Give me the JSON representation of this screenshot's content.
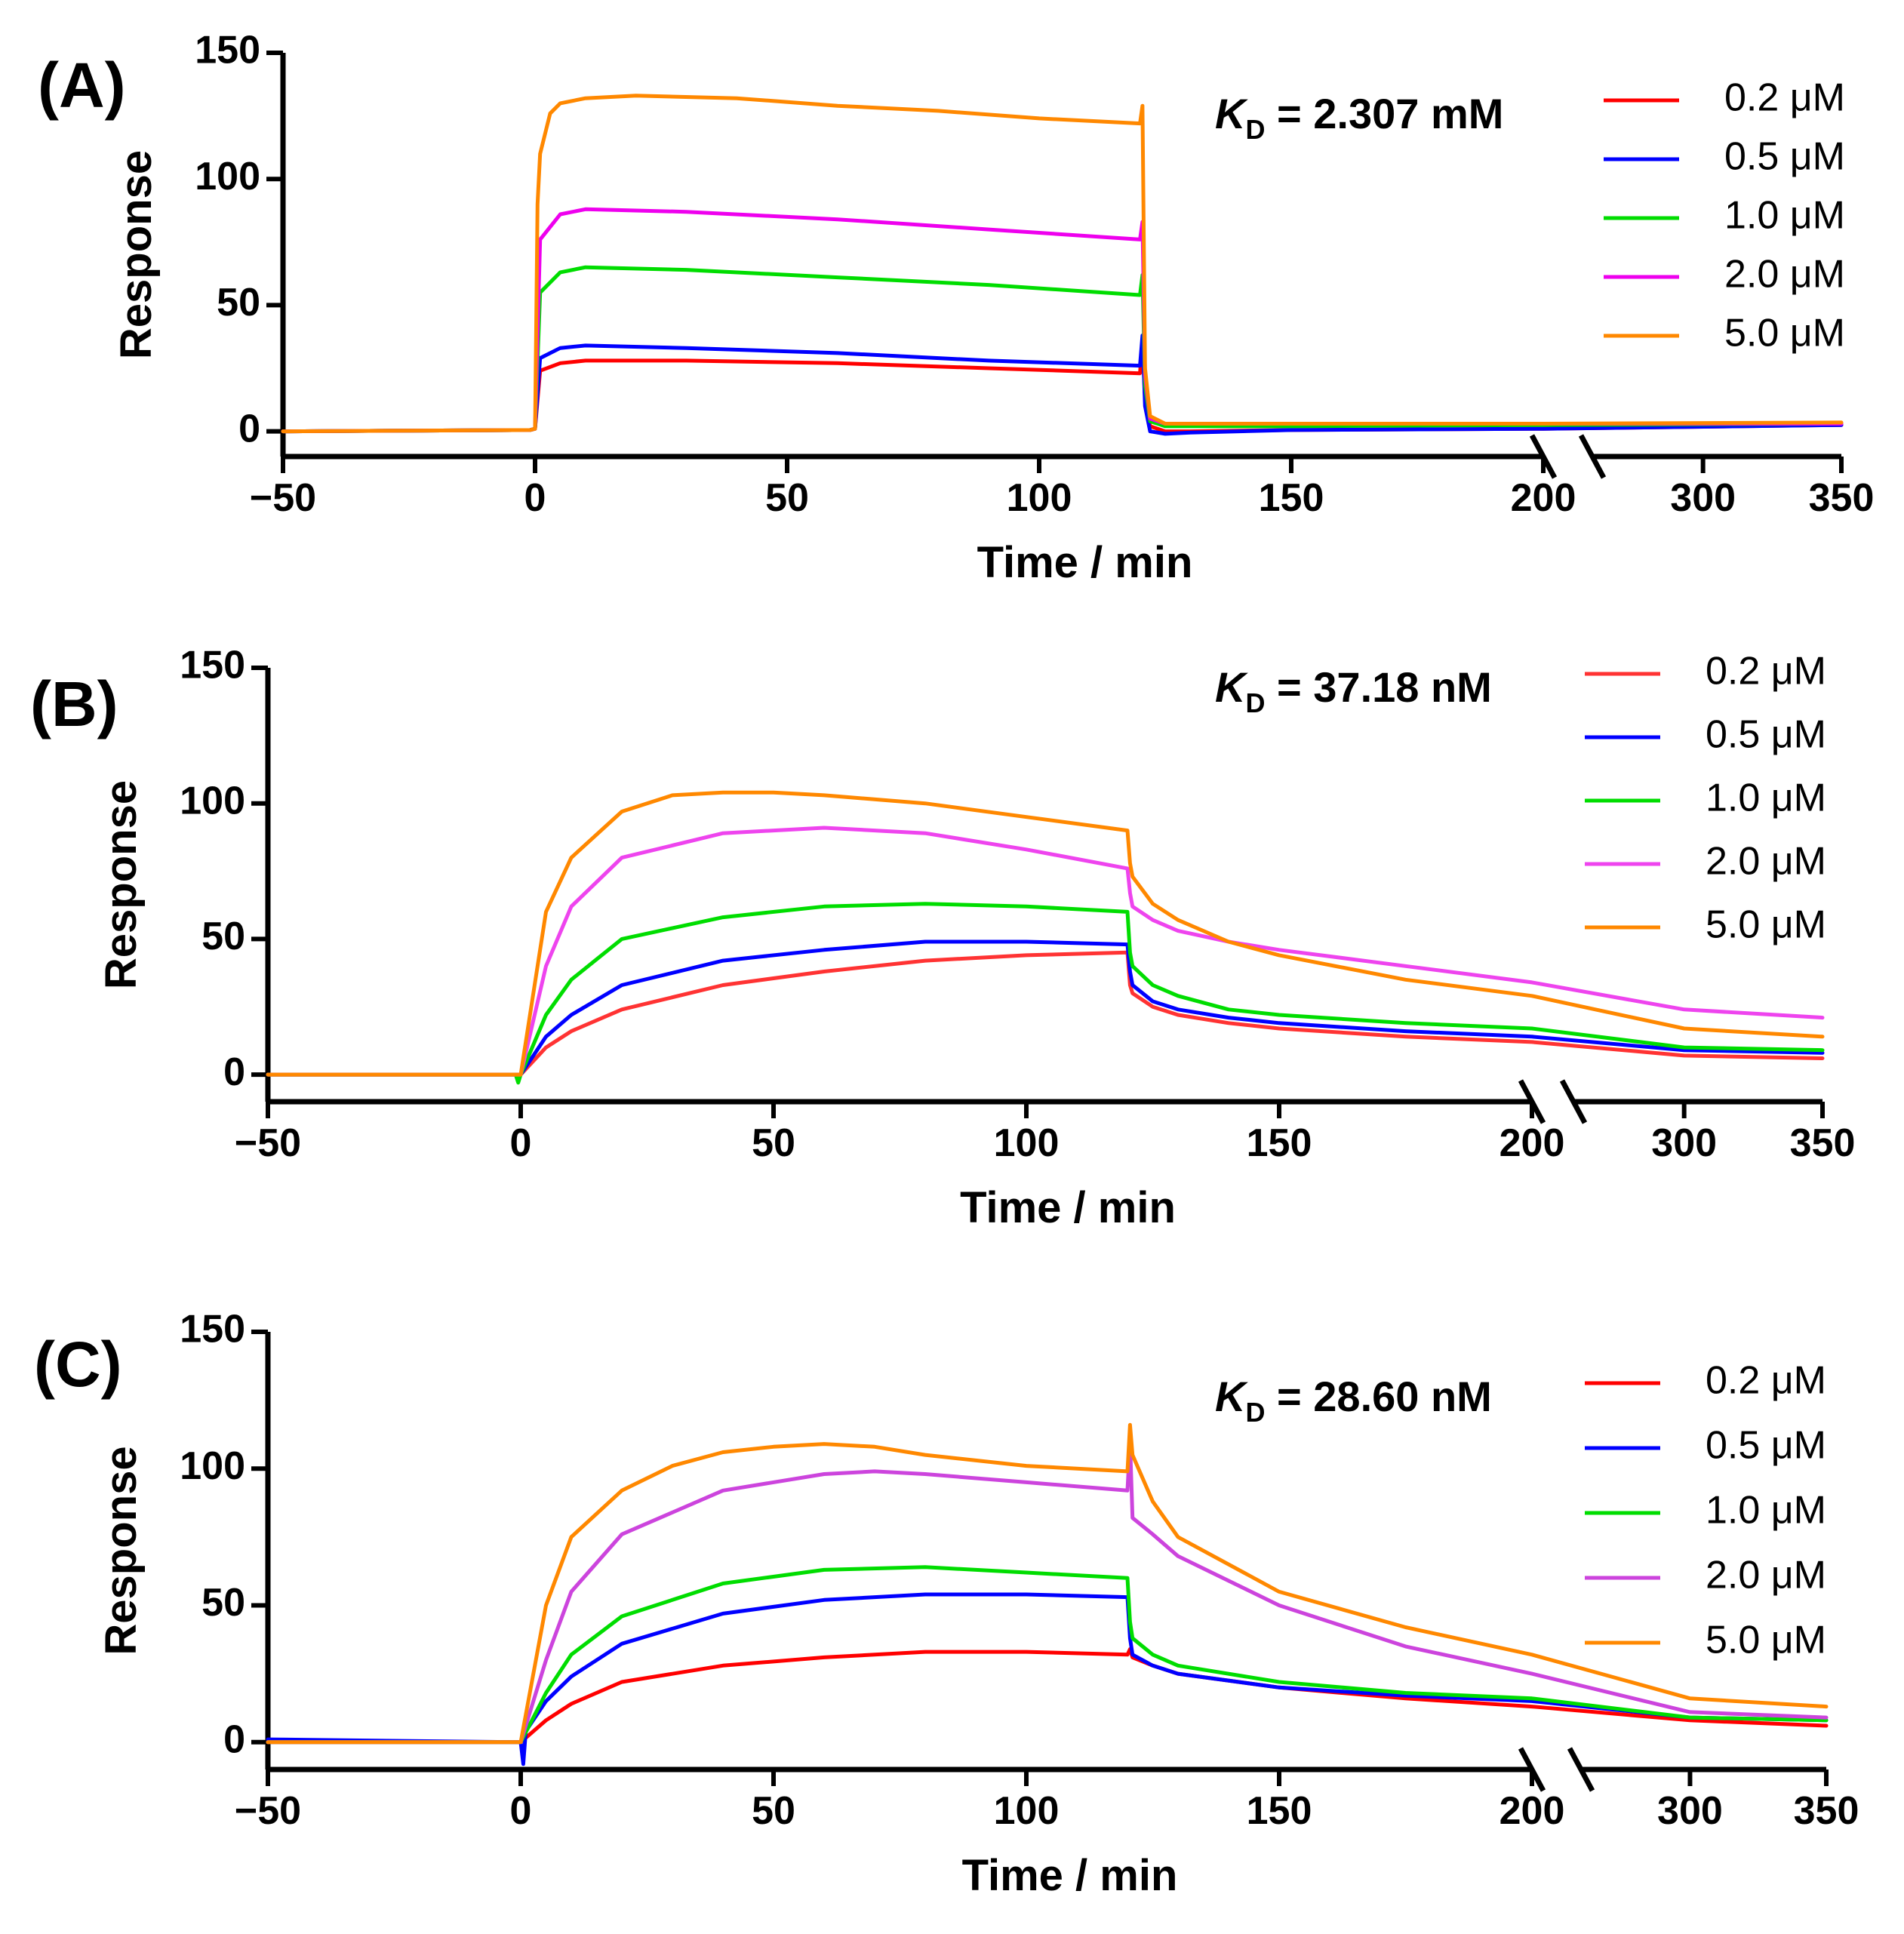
{
  "chart_data": [
    {
      "type": "line",
      "panel": "(A)",
      "title": "",
      "xlabel": "Time / min",
      "ylabel": "Response",
      "xlim": [
        -50,
        350
      ],
      "ylim": [
        -10,
        150
      ],
      "x_break": [
        200,
        260
      ],
      "x_ticks": [
        -50,
        0,
        50,
        100,
        150,
        200,
        300,
        350
      ],
      "x_tick_labels": [
        "−50",
        "0",
        "50",
        "100",
        "150",
        "200",
        "300",
        "350"
      ],
      "y_ticks": [
        0,
        50,
        100,
        150
      ],
      "y_tick_labels": [
        "0",
        "50",
        "100",
        "150"
      ],
      "kd": {
        "symbol": "K",
        "sub": "D",
        "value": " = 2.307 mM"
      },
      "series": [
        {
          "name": "0.2 μM",
          "color": "#ff0000",
          "x": [
            -50,
            -1,
            0,
            1,
            5,
            10,
            30,
            60,
            90,
            120,
            120.5,
            121,
            122,
            125,
            130,
            150,
            200,
            215,
            250,
            350
          ],
          "y": [
            0,
            0.5,
            1,
            24,
            27,
            28,
            28,
            27,
            25,
            23,
            36,
            12,
            2,
            0,
            0,
            0.5,
            1,
            1.5,
            2,
            2.5
          ]
        },
        {
          "name": "0.5 μM",
          "color": "#0000ff",
          "x": [
            -50,
            -1,
            0,
            1,
            5,
            10,
            30,
            60,
            90,
            120,
            120.5,
            121,
            122,
            125,
            130,
            150,
            200,
            215,
            250,
            350
          ],
          "y": [
            0,
            0.5,
            1,
            29,
            33,
            34,
            33,
            31,
            28,
            26,
            38,
            10,
            0,
            -1,
            -0.5,
            0.5,
            1,
            1.5,
            2,
            2.5
          ]
        },
        {
          "name": "1.0 μM",
          "color": "#00dd00",
          "x": [
            -50,
            -1,
            0,
            1,
            5,
            10,
            30,
            60,
            90,
            120,
            120.5,
            121,
            122,
            125,
            130,
            150,
            200,
            215,
            250,
            350
          ],
          "y": [
            0,
            0.5,
            1,
            55,
            63,
            65,
            64,
            61,
            58,
            54,
            62,
            18,
            4,
            2,
            2,
            2,
            2.5,
            2.5,
            2.8,
            3
          ]
        },
        {
          "name": "2.0 μM",
          "color": "#ee00ee",
          "x": [
            -50,
            -1,
            0,
            1,
            5,
            10,
            30,
            60,
            90,
            120,
            120.5,
            121,
            122,
            125,
            130,
            150,
            200,
            215,
            250,
            350
          ],
          "y": [
            0,
            0.5,
            1,
            76,
            86,
            88,
            87,
            84,
            80,
            76,
            83,
            22,
            5,
            3,
            3,
            3,
            3,
            3,
            3,
            3
          ]
        },
        {
          "name": "5.0 μM",
          "color": "#ff8800",
          "x": [
            -50,
            -1,
            0,
            0.5,
            1,
            3,
            5,
            10,
            20,
            40,
            60,
            80,
            100,
            120,
            120.5,
            121,
            122,
            125,
            130,
            150,
            200,
            215,
            250,
            350
          ],
          "y": [
            0,
            0.5,
            1,
            90,
            110,
            126,
            130,
            132,
            133,
            132,
            129,
            127,
            124,
            122,
            129,
            25,
            6,
            3,
            3,
            3,
            3,
            3,
            3,
            3.5
          ]
        }
      ]
    },
    {
      "type": "line",
      "panel": "(B)",
      "title": "",
      "xlabel": "Time / min",
      "ylabel": "Response",
      "xlim": [
        -50,
        350
      ],
      "ylim": [
        -10,
        150
      ],
      "x_break": [
        200,
        260
      ],
      "x_ticks": [
        -50,
        0,
        50,
        100,
        150,
        200,
        300,
        350
      ],
      "x_tick_labels": [
        "−50",
        "0",
        "50",
        "100",
        "150",
        "200",
        "300",
        "350"
      ],
      "y_ticks": [
        0,
        50,
        100,
        150
      ],
      "y_tick_labels": [
        "0",
        "50",
        "100",
        "150"
      ],
      "kd": {
        "symbol": "K",
        "sub": "D",
        "value": " = 37.18 nM"
      },
      "series": [
        {
          "name": "0.2 μM",
          "color": "#ff3333",
          "x": [
            -50,
            -1,
            0,
            5,
            10,
            20,
            40,
            60,
            80,
            100,
            120,
            120.5,
            121,
            125,
            130,
            140,
            150,
            175,
            200,
            215,
            250,
            300,
            350
          ],
          "y": [
            0,
            0,
            0,
            10,
            16,
            24,
            33,
            38,
            42,
            44,
            45,
            33,
            30,
            25,
            22,
            19,
            17,
            14,
            12,
            10,
            9,
            7,
            6
          ]
        },
        {
          "name": "0.5 μM",
          "color": "#0000ff",
          "x": [
            -50,
            -1,
            0,
            5,
            10,
            20,
            40,
            60,
            80,
            100,
            120,
            120.5,
            121,
            125,
            130,
            140,
            150,
            175,
            200,
            215,
            250,
            300,
            350
          ],
          "y": [
            0,
            0,
            0,
            14,
            22,
            33,
            42,
            46,
            49,
            49,
            48,
            38,
            33,
            27,
            24,
            21,
            19,
            16,
            14,
            12,
            11,
            9,
            8
          ]
        },
        {
          "name": "1.0 μM",
          "color": "#00dd00",
          "x": [
            -50,
            -1,
            -0.5,
            0,
            5,
            10,
            20,
            40,
            60,
            80,
            100,
            120,
            120.5,
            121,
            125,
            130,
            140,
            150,
            175,
            200,
            215,
            250,
            300,
            350
          ],
          "y": [
            0,
            0,
            -3,
            0,
            22,
            35,
            50,
            58,
            62,
            63,
            62,
            60,
            45,
            40,
            33,
            29,
            24,
            22,
            19,
            17,
            14,
            12,
            10,
            9
          ]
        },
        {
          "name": "2.0 μM",
          "color": "#ee44ee",
          "x": [
            -50,
            -1,
            0,
            5,
            10,
            20,
            40,
            60,
            80,
            100,
            120,
            120.5,
            121,
            125,
            130,
            140,
            150,
            175,
            200,
            215,
            250,
            300,
            350
          ],
          "y": [
            0,
            0,
            0,
            40,
            62,
            80,
            89,
            91,
            89,
            83,
            76,
            67,
            62,
            57,
            53,
            49,
            46,
            40,
            34,
            29,
            27,
            24,
            21
          ]
        },
        {
          "name": "5.0 μM",
          "color": "#ff8800",
          "x": [
            -50,
            -1,
            0,
            5,
            10,
            20,
            30,
            40,
            50,
            60,
            80,
            100,
            120,
            120.5,
            121,
            125,
            130,
            140,
            150,
            175,
            200,
            215,
            250,
            300,
            350
          ],
          "y": [
            0,
            0,
            0,
            60,
            80,
            97,
            103,
            104,
            104,
            103,
            100,
            95,
            90,
            78,
            73,
            63,
            57,
            49,
            44,
            35,
            29,
            22,
            20,
            17,
            14
          ]
        }
      ]
    },
    {
      "type": "line",
      "panel": "(C)",
      "title": "",
      "xlabel": "Time / min",
      "ylabel": "Response",
      "xlim": [
        -50,
        350
      ],
      "ylim": [
        -10,
        150
      ],
      "x_break": [
        200,
        260
      ],
      "x_ticks": [
        -50,
        0,
        50,
        100,
        150,
        200,
        300,
        350
      ],
      "x_tick_labels": [
        "−50",
        "0",
        "50",
        "100",
        "150",
        "200",
        "300",
        "350"
      ],
      "y_ticks": [
        0,
        50,
        100,
        150
      ],
      "y_tick_labels": [
        "0",
        "50",
        "100",
        "150"
      ],
      "kd": {
        "symbol": "K",
        "sub": "D",
        "value": " = 28.60 nM"
      },
      "series": [
        {
          "name": "0.2 μM",
          "color": "#ff0000",
          "x": [
            -50,
            -1,
            0,
            5,
            10,
            20,
            40,
            60,
            80,
            100,
            120,
            120.5,
            121,
            125,
            130,
            150,
            175,
            200,
            215,
            250,
            300,
            350
          ],
          "y": [
            0,
            0,
            0,
            8,
            14,
            22,
            28,
            31,
            33,
            33,
            32,
            34,
            31,
            28,
            25,
            20,
            16,
            13,
            11,
            10,
            8,
            6
          ]
        },
        {
          "name": "0.5 μM",
          "color": "#0000ff",
          "x": [
            -50,
            -1,
            0,
            0.5,
            1,
            5,
            10,
            20,
            40,
            60,
            80,
            100,
            120,
            120.5,
            121,
            125,
            130,
            150,
            175,
            200,
            215,
            250,
            300,
            350
          ],
          "y": [
            1,
            0,
            0,
            -8,
            4,
            15,
            24,
            36,
            47,
            52,
            54,
            54,
            53,
            38,
            32,
            28,
            25,
            20,
            17,
            15,
            12,
            11,
            9,
            8
          ]
        },
        {
          "name": "1.0 μM",
          "color": "#00dd00",
          "x": [
            -50,
            -1,
            0,
            5,
            10,
            20,
            40,
            60,
            80,
            100,
            120,
            120.5,
            121,
            125,
            130,
            150,
            175,
            200,
            215,
            250,
            300,
            350
          ],
          "y": [
            0,
            0,
            0,
            18,
            32,
            46,
            58,
            63,
            64,
            62,
            60,
            44,
            38,
            32,
            28,
            22,
            18,
            16,
            13,
            11,
            9,
            8
          ]
        },
        {
          "name": "2.0 μM",
          "color": "#cc44dd",
          "x": [
            -50,
            -1,
            0,
            5,
            10,
            20,
            40,
            60,
            70,
            80,
            100,
            120,
            120.5,
            121,
            125,
            130,
            150,
            175,
            200,
            215,
            250,
            300,
            350
          ],
          "y": [
            0,
            0,
            0,
            30,
            55,
            76,
            92,
            98,
            99,
            98,
            95,
            92,
            110,
            82,
            76,
            68,
            50,
            35,
            25,
            17,
            14,
            11,
            9
          ]
        },
        {
          "name": "5.0 μM",
          "color": "#ff8800",
          "x": [
            -50,
            -1,
            0,
            5,
            10,
            20,
            30,
            40,
            50,
            60,
            70,
            80,
            100,
            120,
            120.5,
            121,
            125,
            130,
            150,
            175,
            200,
            215,
            250,
            300,
            350
          ],
          "y": [
            0,
            0,
            0,
            50,
            75,
            92,
            101,
            106,
            108,
            109,
            108,
            105,
            101,
            99,
            116,
            105,
            88,
            75,
            55,
            42,
            32,
            24,
            20,
            16,
            13
          ]
        }
      ]
    }
  ]
}
